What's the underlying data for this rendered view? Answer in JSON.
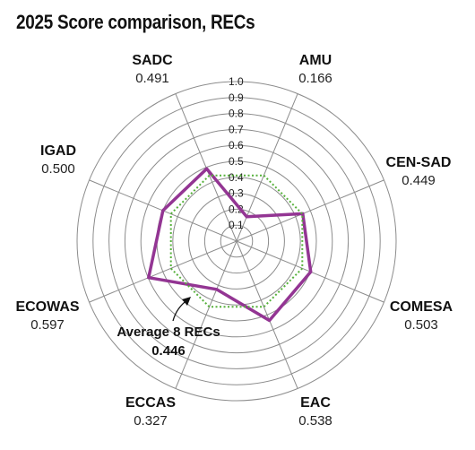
{
  "chart_data": {
    "type": "radar",
    "title": "2025 Score comparison, RECs",
    "rlim": [
      0,
      1.0
    ],
    "ticks": [
      "0.1",
      "0.2",
      "0.3",
      "0.4",
      "0.5",
      "0.6",
      "0.7",
      "0.8",
      "0.9",
      "1.0"
    ],
    "grid": true,
    "categories": [
      "AMU",
      "CEN-SAD",
      "COMESA",
      "EAC",
      "ECCAS",
      "ECOWAS",
      "IGAD",
      "SADC"
    ],
    "value_labels": [
      "0.166",
      "0.449",
      "0.503",
      "0.538",
      "0.327",
      "0.597",
      "0.500",
      "0.491"
    ],
    "series": [
      {
        "values": [
          0.166,
          0.449,
          0.503,
          0.538,
          0.327,
          0.597,
          0.5,
          0.491
        ],
        "color": "#933593",
        "style": "solid"
      },
      {
        "values": [
          0.446,
          0.446,
          0.446,
          0.446,
          0.446,
          0.446,
          0.446,
          0.446
        ],
        "color": "#55b03a",
        "style": "dotted"
      }
    ],
    "annotation": {
      "line1": "Average 8 RECs",
      "line2": "0.446"
    }
  }
}
